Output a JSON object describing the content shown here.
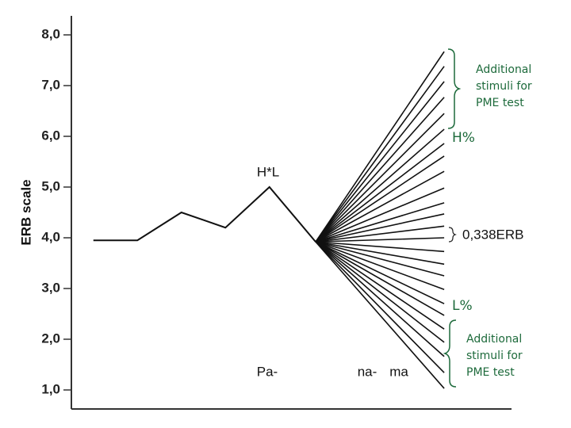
{
  "chart_data": {
    "type": "line",
    "ylabel": "ERB scale",
    "ylim": [
      0.625,
      8.375
    ],
    "yticks": [
      {
        "value": 1,
        "label": "1,0"
      },
      {
        "value": 2,
        "label": "2,0"
      },
      {
        "value": 3,
        "label": "3,0"
      },
      {
        "value": 4,
        "label": "4,0"
      },
      {
        "value": 5,
        "label": "5,0"
      },
      {
        "value": 6,
        "label": "6,0"
      },
      {
        "value": 7,
        "label": "7,0"
      },
      {
        "value": 8,
        "label": "8,0"
      }
    ],
    "xlim": [
      0,
      10
    ],
    "contour": {
      "x": [
        0.5,
        1.5,
        2.5,
        3.5,
        4.5,
        5.55
      ],
      "values": [
        3.95,
        3.95,
        4.5,
        4.2,
        5.0,
        3.92
      ]
    },
    "fan": {
      "x": [
        5.55,
        8.47
      ],
      "start": 3.92,
      "ends": [
        7.67,
        7.38,
        7.08,
        6.77,
        6.45,
        6.14,
        5.86,
        5.61,
        5.31,
        4.98,
        4.69,
        4.47,
        4.23,
        4.0,
        3.73,
        3.48,
        3.25,
        2.98,
        2.7,
        2.47,
        2.2,
        1.94,
        1.66,
        1.34,
        1.03
      ]
    },
    "accent_label": "H*L",
    "boundary_high": "H%",
    "boundary_low": "L%",
    "step_label": "0,338ERB",
    "pme_top": [
      "Additional",
      "stimuli for",
      "PME test"
    ],
    "pme_bottom": [
      "Additional",
      "stimuli for",
      "PME test"
    ],
    "syllables": [
      "Pa-",
      "na-",
      "ma"
    ]
  }
}
